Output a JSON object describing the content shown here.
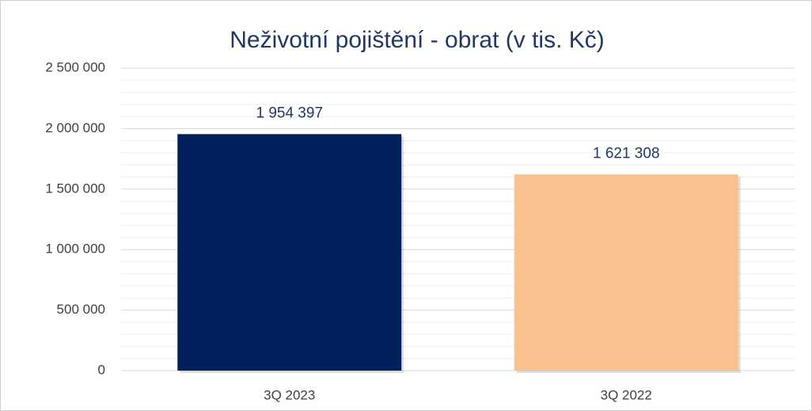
{
  "chart_data": {
    "type": "bar",
    "title": "Neživotní pojištění - obrat (v tis. Kč)",
    "categories": [
      "3Q 2023",
      "3Q 2022"
    ],
    "values": [
      1954397,
      1621308
    ],
    "value_labels": [
      "1 954 397",
      "1 621 308"
    ],
    "colors": [
      "#001f5b",
      "#f8c191"
    ],
    "ylim": [
      0,
      2500000
    ],
    "yticks": [
      0,
      {
        "value": 500000,
        "label": "500 000"
      },
      {
        "value": 1000000,
        "label": "1 000 000"
      },
      {
        "value": 1500000,
        "label": "1 500 000"
      },
      {
        "value": 2000000,
        "label": "2 000 000"
      },
      {
        "value": 2500000,
        "label": "2 500 000"
      }
    ],
    "grid": true
  }
}
